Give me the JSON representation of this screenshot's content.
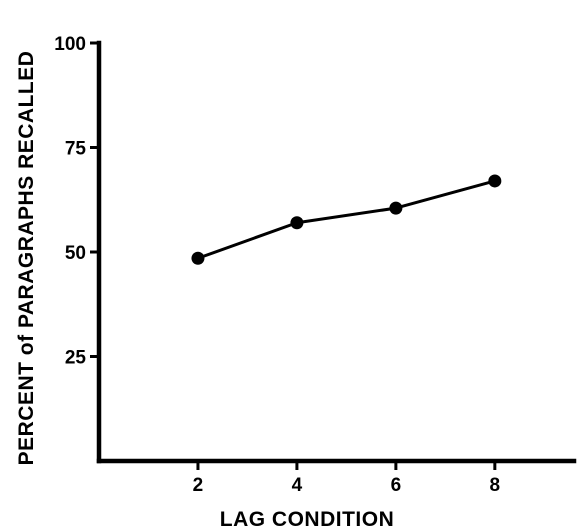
{
  "chart_data": {
    "type": "line",
    "xlabel": "LAG CONDITION",
    "ylabel": "PERCENT of PARAGRAPHS RECALLED",
    "x": [
      2,
      4,
      6,
      8
    ],
    "series": [
      {
        "values": [
          48.5,
          57,
          60.5,
          67
        ]
      }
    ],
    "xticks": [
      "2",
      "4",
      "6",
      "8"
    ],
    "yticks": [
      "25",
      "50",
      "75",
      "100"
    ],
    "ytick_values": [
      25,
      50,
      75,
      100
    ],
    "xlim": [
      0,
      9.6
    ],
    "ylim": [
      0,
      100
    ],
    "grid": false,
    "colors": {
      "line": "#000000",
      "marker": "#000000",
      "axis": "#000000"
    }
  }
}
